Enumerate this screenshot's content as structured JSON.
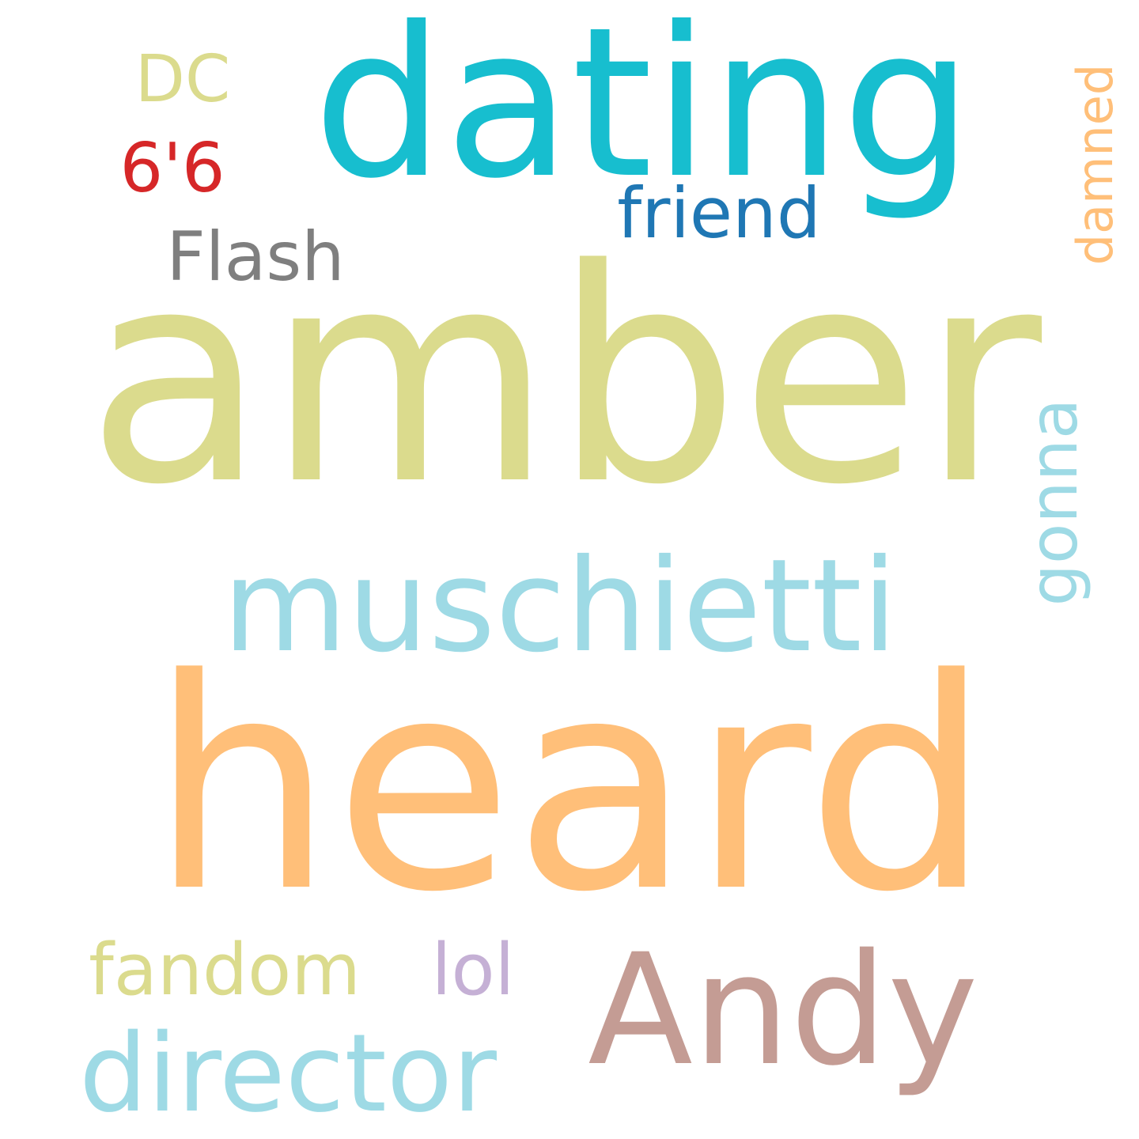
{
  "words": [
    {
      "text": "amber",
      "color": "#dbdb8d",
      "orientation": "horizontal"
    },
    {
      "text": "heard",
      "color": "#ffbf79",
      "orientation": "horizontal"
    },
    {
      "text": "dating",
      "color": "#17becf",
      "orientation": "horizontal"
    },
    {
      "text": "muschietti",
      "color": "#9edae5",
      "orientation": "horizontal"
    },
    {
      "text": "Andy",
      "color": "#c49c94",
      "orientation": "horizontal"
    },
    {
      "text": "director",
      "color": "#9edae5",
      "orientation": "horizontal"
    },
    {
      "text": "friend",
      "color": "#1f77b4",
      "orientation": "horizontal"
    },
    {
      "text": "Flash",
      "color": "#7f7f7f",
      "orientation": "horizontal"
    },
    {
      "text": "fandom",
      "color": "#dbdb8d",
      "orientation": "horizontal"
    },
    {
      "text": "lol",
      "color": "#c5b0d5",
      "orientation": "horizontal"
    },
    {
      "text": "6'6",
      "color": "#d62728",
      "orientation": "horizontal"
    },
    {
      "text": "DC",
      "color": "#dbdb8d",
      "orientation": "horizontal"
    },
    {
      "text": "damned",
      "color": "#ffbf79",
      "orientation": "vertical"
    },
    {
      "text": "gonna",
      "color": "#9edae5",
      "orientation": "vertical"
    }
  ]
}
